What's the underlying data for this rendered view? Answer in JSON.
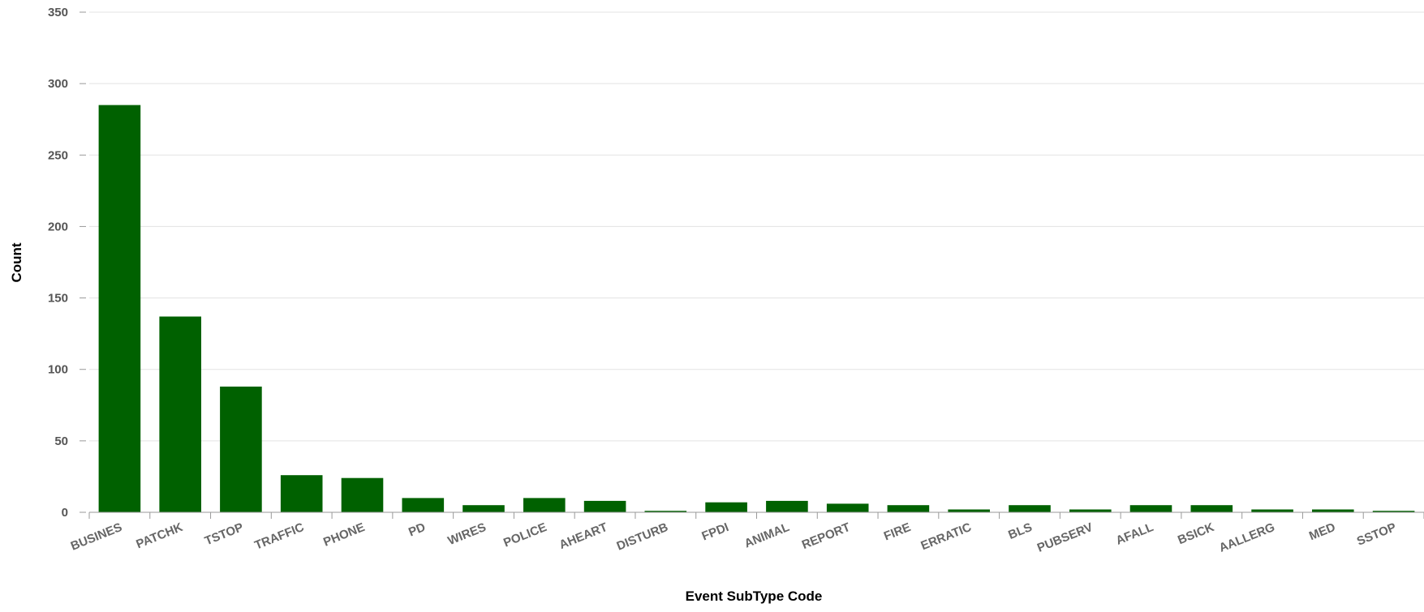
{
  "chart_data": {
    "type": "bar",
    "title": "",
    "xlabel": "Event SubType Code",
    "ylabel": "Count",
    "ylim": [
      0,
      350
    ],
    "yticks": [
      0,
      50,
      100,
      150,
      200,
      250,
      300,
      350
    ],
    "grid": true,
    "legend": "none",
    "bar_color": "#006100",
    "categories": [
      "BUSINES",
      "PATCHK",
      "TSTOP",
      "TRAFFIC",
      "PHONE",
      "PD",
      "WIRES",
      "POLICE",
      "AHEART",
      "DISTURB",
      "FPDI",
      "ANIMAL",
      "REPORT",
      "FIRE",
      "ERRATIC",
      "BLS",
      "PUBSERV",
      "AFALL",
      "BSICK",
      "AALLERG",
      "MED",
      "SSTOP"
    ],
    "values": [
      285,
      137,
      88,
      26,
      24,
      10,
      5,
      10,
      8,
      1,
      7,
      8,
      6,
      5,
      2,
      5,
      2,
      5,
      5,
      2,
      2,
      1
    ]
  }
}
